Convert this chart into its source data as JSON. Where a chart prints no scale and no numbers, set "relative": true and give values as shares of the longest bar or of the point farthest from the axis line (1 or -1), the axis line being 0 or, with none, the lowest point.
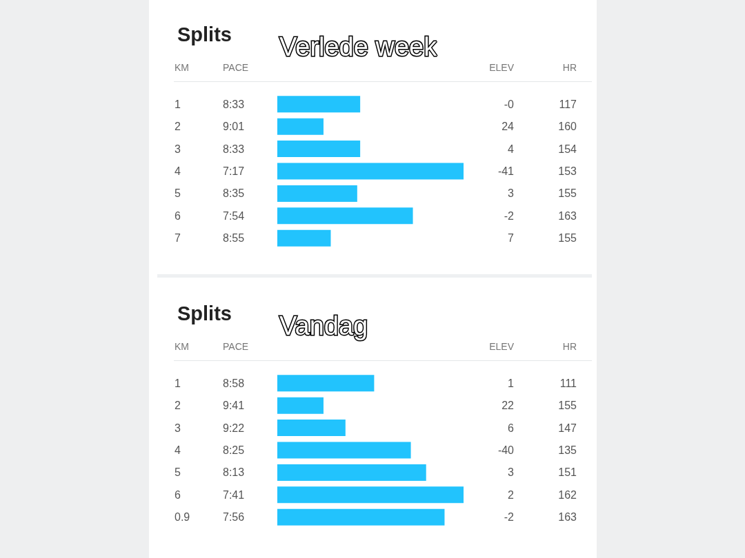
{
  "chart_data": [
    {
      "type": "bar",
      "orientation": "horizontal",
      "relative": true,
      "title": "Splits",
      "subtitle": "Verlede week",
      "ylabel": "KM",
      "color": "#22c3fd",
      "categories": [
        "1",
        "2",
        "3",
        "4",
        "5",
        "6",
        "7"
      ],
      "values": [
        0.445,
        0.248,
        0.445,
        1,
        0.429,
        0.728,
        0.287
      ],
      "annotations": [
        "PACE",
        "ELEV",
        "HR",
        "8:33",
        "-0",
        "117",
        "9:01",
        "24",
        "160",
        "8:33",
        "4",
        "154",
        "7:17",
        "-41",
        "153",
        "8:35",
        "3",
        "155",
        "7:54",
        "-2",
        "163",
        "8:55",
        "7",
        "155"
      ]
    },
    {
      "type": "bar",
      "orientation": "horizontal",
      "relative": true,
      "title": "Splits",
      "subtitle": "Vandag",
      "ylabel": "KM",
      "color": "#22c3fd",
      "categories": [
        "1",
        "2",
        "3",
        "4",
        "5",
        "6",
        "0.9"
      ],
      "values": [
        0.52,
        0.248,
        0.366,
        0.717,
        0.799,
        1,
        0.898
      ],
      "annotations": [
        "PACE",
        "ELEV",
        "HR",
        "8:58",
        "1",
        "111",
        "9:41",
        "22",
        "155",
        "9:22",
        "6",
        "147",
        "8:25",
        "-40",
        "135",
        "8:13",
        "3",
        "151",
        "7:41",
        "2",
        "162",
        "7:56",
        "-2",
        "163"
      ]
    }
  ]
}
